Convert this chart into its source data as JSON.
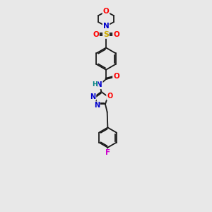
{
  "bg_color": "#e8e8e8",
  "bond_color": "#1a1a1a",
  "colors": {
    "O": "#ff0000",
    "N": "#0000cc",
    "S": "#ccaa00",
    "F": "#cc00cc",
    "H": "#008080",
    "C": "#1a1a1a"
  },
  "figsize": [
    3.0,
    3.0
  ],
  "dpi": 100
}
